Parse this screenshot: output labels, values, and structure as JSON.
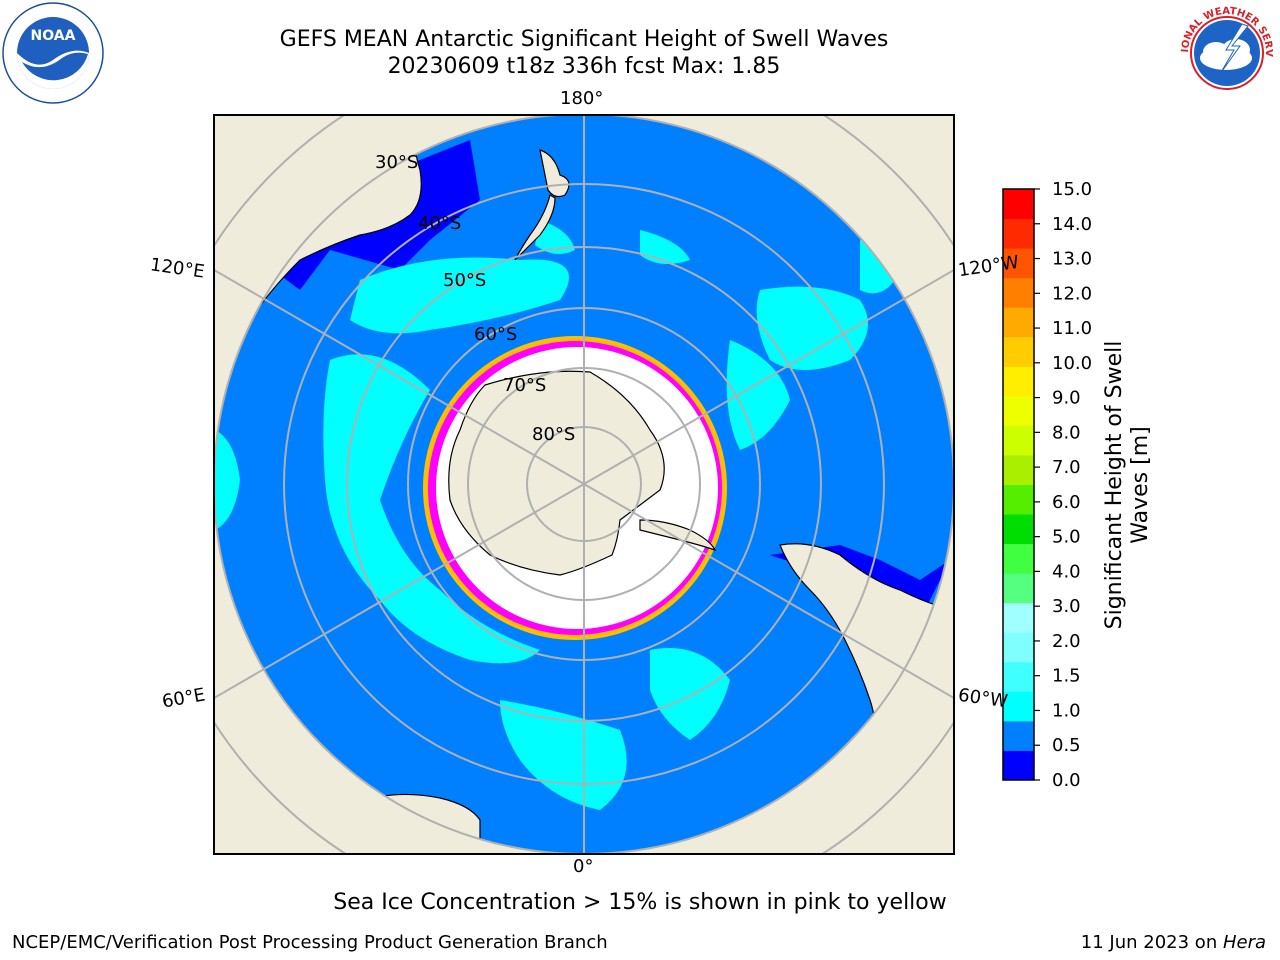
{
  "header": {
    "title_line1": "GEFS MEAN Antarctic Significant Height of Swell Waves",
    "title_line2": "20230609 t18z 336h fcst   Max: 1.85"
  },
  "logos": {
    "left": "noaa-logo",
    "right": "national-weather-service-logo",
    "left_text": "NOAA",
    "left_ring_text": "NATIONAL OCEANIC AND ATMOSPHERIC ADMINISTRATION · U.S. DEPARTMENT OF COMMERCE",
    "right_ring_text": "NATIONAL WEATHER SERVICE"
  },
  "map": {
    "projection": "south-polar-stereographic",
    "longitude_labels": {
      "top": "180°",
      "bottom": "0°",
      "left_upper": "120°E",
      "left_lower": "60°E",
      "right_upper": "120°W",
      "right_lower": "60°W"
    },
    "latitude_labels": [
      "30°S",
      "40°S",
      "50°S",
      "60°S",
      "70°S",
      "80°S"
    ],
    "colors": {
      "land": "#efecdc",
      "ocean_base": "#0080ff",
      "swell_0_0_5": "#0000ff",
      "swell_1_0_1_5": "#00ffff",
      "sea_ice": "#ff00ff",
      "ice_edge": "#ffbf00",
      "grid": "#b0b0b0"
    }
  },
  "colorbar": {
    "title": "Significant Height of Swell Waves [m]",
    "title_line1": "Significant Height of Swell",
    "title_line2": "Waves [m]",
    "ticks": [
      "15.0",
      "14.0",
      "13.0",
      "12.0",
      "11.0",
      "10.0",
      "9.0",
      "8.0",
      "7.0",
      "6.0",
      "5.0",
      "4.0",
      "3.0",
      "2.0",
      "1.5",
      "1.0",
      "0.5",
      "0.0"
    ],
    "colors": [
      "#0000ff",
      "#0080ff",
      "#00ffff",
      "#40ffff",
      "#80ffff",
      "#a0ffff",
      "#55ff80",
      "#40ff40",
      "#00dd00",
      "#55ee00",
      "#aaee00",
      "#ccff00",
      "#eeff00",
      "#ffee00",
      "#ffcc00",
      "#ffaa00",
      "#ff8000",
      "#ff5500",
      "#ff2a00",
      "#ff0000"
    ]
  },
  "caption": "Sea Ice Concentration > 15% is shown in pink to yellow",
  "footer": {
    "left": "NCEP/EMC/Verification Post Processing Product Generation Branch",
    "right_date": "11 Jun 2023 on ",
    "right_machine": "Hera"
  }
}
